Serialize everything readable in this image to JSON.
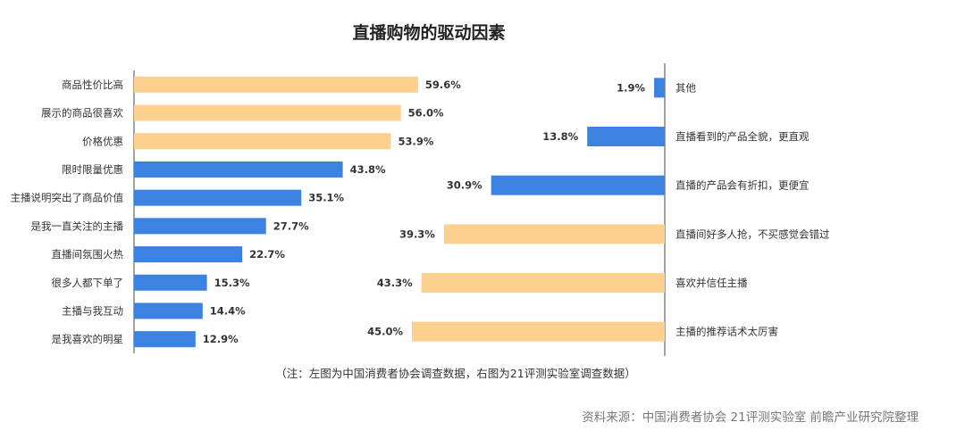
{
  "title": "直播购物的驱动因素",
  "note": "（注：左图为中国消费者协会调查数据，右图为21评测实验室调查数据）",
  "source": "资料来源：中国消费者协会 21评测实验室 前瞻产业研究院整理",
  "colors": {
    "orange": "#FCD18D",
    "blue": "#3C82E0"
  },
  "chart_data": [
    {
      "type": "bar",
      "orientation": "horizontal",
      "unit": "%",
      "categories": [
        "商品性价比高",
        "展示的商品很喜欢",
        "价格优惠",
        "限时限量优惠",
        "主播说明突出了商品价值",
        "是我一直关注的主播",
        "直播间氛围火热",
        "很多人都下单了",
        "主播与我互动",
        "是我喜欢的明星"
      ],
      "values": [
        59.6,
        56.0,
        53.9,
        43.8,
        35.1,
        27.7,
        22.7,
        15.3,
        14.4,
        12.9
      ],
      "value_labels": [
        "59.6%",
        "56.0%",
        "53.9%",
        "43.8%",
        "35.1%",
        "27.7%",
        "22.7%",
        "15.3%",
        "14.4%",
        "12.9%"
      ],
      "bar_colors": [
        "orange",
        "orange",
        "orange",
        "blue",
        "blue",
        "blue",
        "blue",
        "blue",
        "blue",
        "blue"
      ],
      "xlim": [
        0,
        60
      ]
    },
    {
      "type": "bar",
      "orientation": "horizontal",
      "direction": "right-to-left",
      "unit": "%",
      "categories": [
        "其他",
        "直播看到的产品全貌，更直观",
        "直播的产品会有折扣，更便宜",
        "直播间好多人抢，不买感觉会错过",
        "喜欢并信任主播",
        "主播的推荐话术太厉害"
      ],
      "values": [
        1.9,
        13.8,
        30.9,
        39.3,
        43.3,
        45.0
      ],
      "value_labels": [
        "1.9%",
        "13.8%",
        "30.9%",
        "39.3%",
        "43.3%",
        "45.0%"
      ],
      "bar_colors": [
        "blue",
        "blue",
        "blue",
        "orange",
        "orange",
        "orange"
      ],
      "xlim": [
        0,
        45
      ]
    }
  ]
}
